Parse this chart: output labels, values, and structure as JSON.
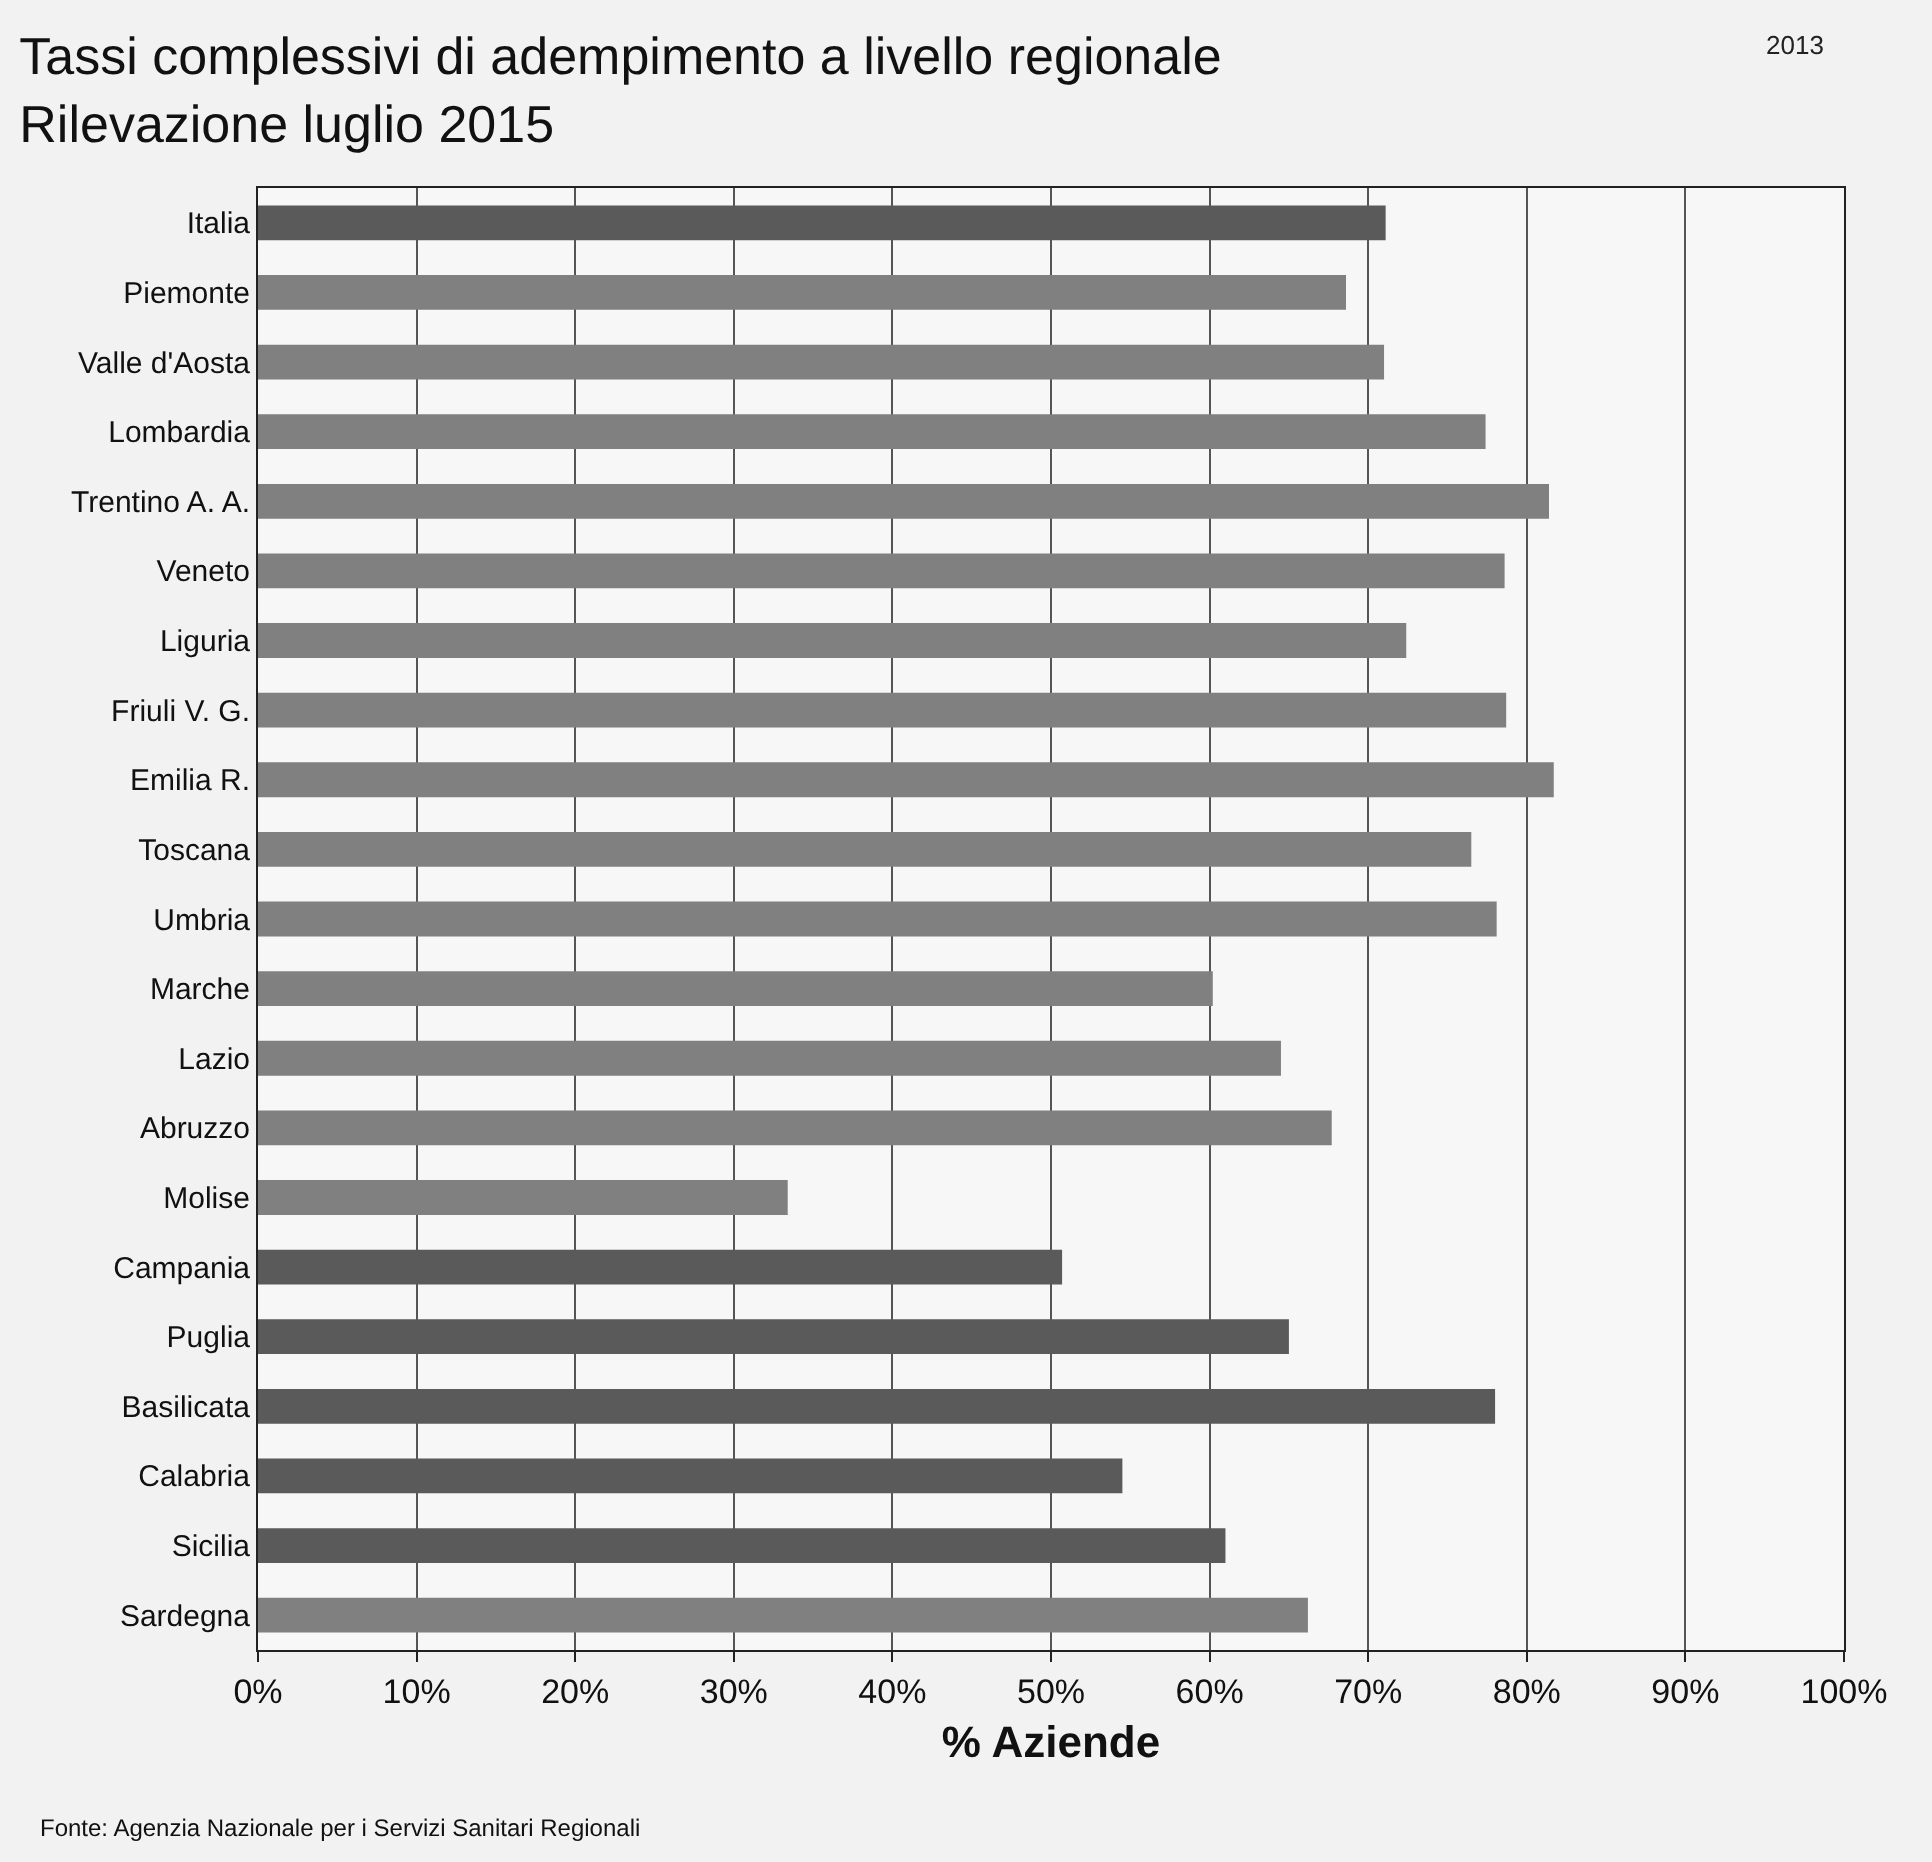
{
  "chart_data": {
    "type": "bar",
    "orientation": "horizontal",
    "title": "Tassi complessivi di adempimento a livello regionale",
    "subtitle": "Rilevazione luglio 2015",
    "xlabel": "% Aziende",
    "categories": [
      "Italia",
      "Piemonte",
      "Valle d'Aosta",
      "Lombardia",
      "Trentino A. A.",
      "Veneto",
      "Liguria",
      "Friuli V. G.",
      "Emilia R.",
      "Toscana",
      "Umbria",
      "Marche",
      "Lazio",
      "Abruzzo",
      "Molise",
      "Campania",
      "Puglia",
      "Basilicata",
      "Calabria",
      "Sicilia",
      "Sardegna"
    ],
    "values": [
      71.1,
      68.6,
      71.0,
      77.4,
      81.4,
      78.6,
      72.4,
      78.7,
      81.7,
      76.5,
      78.1,
      60.2,
      64.5,
      67.7,
      33.4,
      50.7,
      65.0,
      78.0,
      54.5,
      61.0,
      66.2
    ],
    "colors": [
      "#5a5a5a",
      "#808080",
      "#808080",
      "#808080",
      "#808080",
      "#808080",
      "#808080",
      "#808080",
      "#808080",
      "#808080",
      "#808080",
      "#808080",
      "#808080",
      "#808080",
      "#808080",
      "#5a5a5a",
      "#5a5a5a",
      "#5a5a5a",
      "#5a5a5a",
      "#5a5a5a",
      "#808080"
    ],
    "xlim": [
      0,
      100
    ],
    "xticks": [
      {
        "value": 0,
        "label": "0%"
      },
      {
        "value": 10,
        "label": "10%"
      },
      {
        "value": 20,
        "label": "20%"
      },
      {
        "value": 30,
        "label": "30%"
      },
      {
        "value": 40,
        "label": "40%"
      },
      {
        "value": 50,
        "label": "50%"
      },
      {
        "value": 60,
        "label": "60%"
      },
      {
        "value": 70,
        "label": "70%"
      },
      {
        "value": 80,
        "label": "80%"
      },
      {
        "value": 90,
        "label": "90%"
      },
      {
        "value": 100,
        "label": "100%"
      }
    ],
    "grid": "x",
    "annotations": [
      "2013",
      "Fonte: Agenzia Nazionale per i Servizi Sanitari Regionali"
    ]
  }
}
